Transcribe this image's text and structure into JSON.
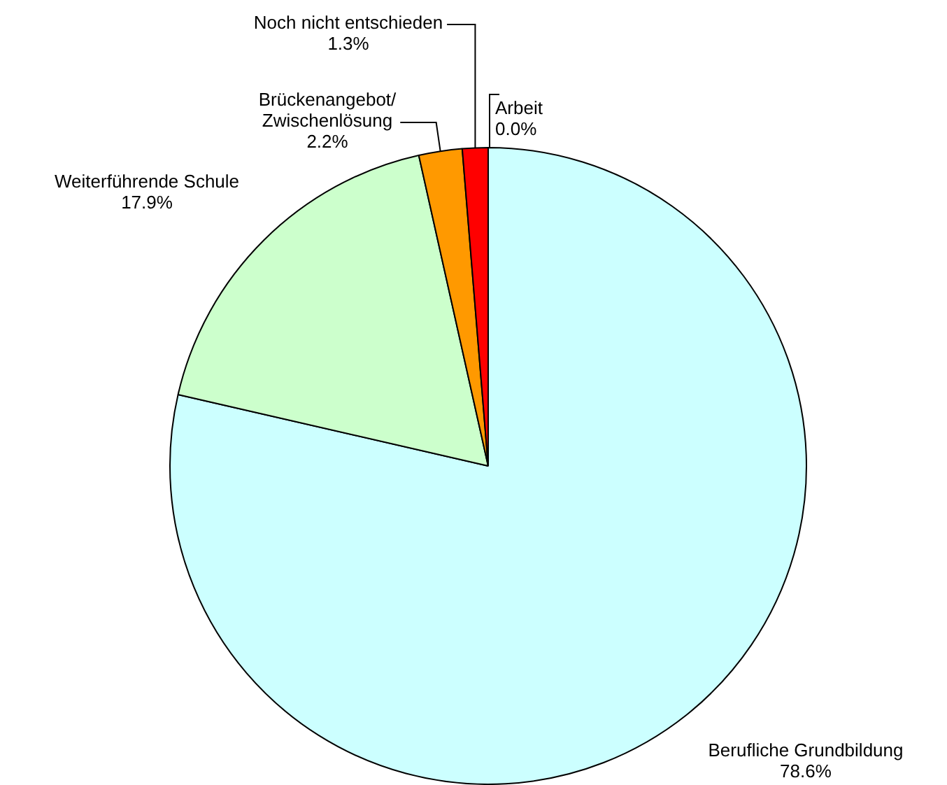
{
  "chart_data": {
    "type": "pie",
    "categories": [
      "Berufliche Grundbildung",
      "Weiterführende Schule",
      "Brückenangebot/\nZwischenlösung",
      "Noch nicht entschieden",
      "Arbeit"
    ],
    "values": [
      78.6,
      17.9,
      2.2,
      1.3,
      0.0
    ],
    "colors": [
      "#ccffff",
      "#ccffcc",
      "#ff9900",
      "#ff0000",
      "#3366ff"
    ],
    "value_labels": [
      "78.6%",
      "17.9%",
      "2.2%",
      "1.3%",
      "0.0%"
    ],
    "legend": false
  }
}
